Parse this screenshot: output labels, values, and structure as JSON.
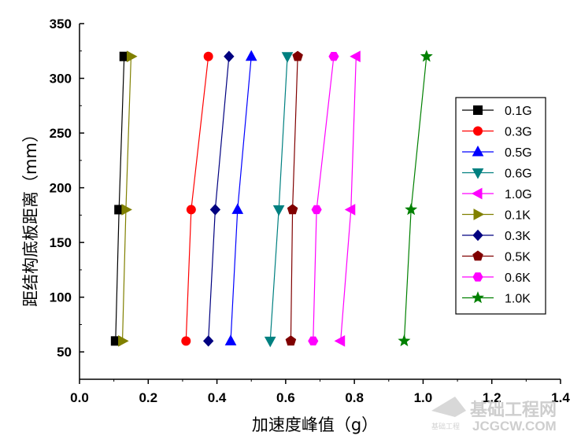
{
  "chart_data": {
    "type": "line",
    "xlabel": "加速度峰值（g）",
    "ylabel": "距结构底板距离（mm）",
    "xlim": [
      0.0,
      1.4
    ],
    "ylim": [
      25,
      350
    ],
    "x_ticks": [
      "0.0",
      "0.2",
      "0.4",
      "0.6",
      "0.8",
      "1.0",
      "1.2",
      "1.4"
    ],
    "y_ticks": [
      "50",
      "100",
      "150",
      "200",
      "250",
      "300",
      "350"
    ],
    "legend_position": "right",
    "series": [
      {
        "name": "0.1G",
        "color": "#000000",
        "marker": "square",
        "points": [
          [
            0.105,
            60
          ],
          [
            0.115,
            180
          ],
          [
            0.13,
            320
          ]
        ]
      },
      {
        "name": "0.3G",
        "color": "#ff0000",
        "marker": "circle",
        "points": [
          [
            0.31,
            60
          ],
          [
            0.325,
            180
          ],
          [
            0.375,
            320
          ]
        ]
      },
      {
        "name": "0.5G",
        "color": "#0000ff",
        "marker": "triangle-up",
        "points": [
          [
            0.44,
            60
          ],
          [
            0.46,
            180
          ],
          [
            0.5,
            320
          ]
        ]
      },
      {
        "name": "0.6G",
        "color": "#008080",
        "marker": "triangle-down",
        "points": [
          [
            0.555,
            60
          ],
          [
            0.58,
            180
          ],
          [
            0.605,
            320
          ]
        ]
      },
      {
        "name": "1.0G",
        "color": "#ff00ff",
        "marker": "triangle-left",
        "points": [
          [
            0.76,
            60
          ],
          [
            0.79,
            180
          ],
          [
            0.805,
            320
          ]
        ]
      },
      {
        "name": "0.1K",
        "color": "#808000",
        "marker": "triangle-right",
        "points": [
          [
            0.125,
            60
          ],
          [
            0.135,
            180
          ],
          [
            0.15,
            320
          ]
        ]
      },
      {
        "name": "0.3K",
        "color": "#000080",
        "marker": "diamond",
        "points": [
          [
            0.375,
            60
          ],
          [
            0.395,
            180
          ],
          [
            0.435,
            320
          ]
        ]
      },
      {
        "name": "0.5K",
        "color": "#800000",
        "marker": "pentagon",
        "points": [
          [
            0.615,
            60
          ],
          [
            0.62,
            180
          ],
          [
            0.635,
            320
          ]
        ]
      },
      {
        "name": "0.6K",
        "color": "#ff00ff",
        "marker": "hexagon",
        "points": [
          [
            0.68,
            60
          ],
          [
            0.69,
            180
          ],
          [
            0.74,
            320
          ]
        ]
      },
      {
        "name": "1.0K",
        "color": "#008000",
        "marker": "star",
        "points": [
          [
            0.945,
            60
          ],
          [
            0.965,
            180
          ],
          [
            1.01,
            320
          ]
        ]
      }
    ]
  },
  "watermark": {
    "site_name": "基础工程网",
    "domain": "JCGCW.COM",
    "small_text": "基础工程"
  }
}
